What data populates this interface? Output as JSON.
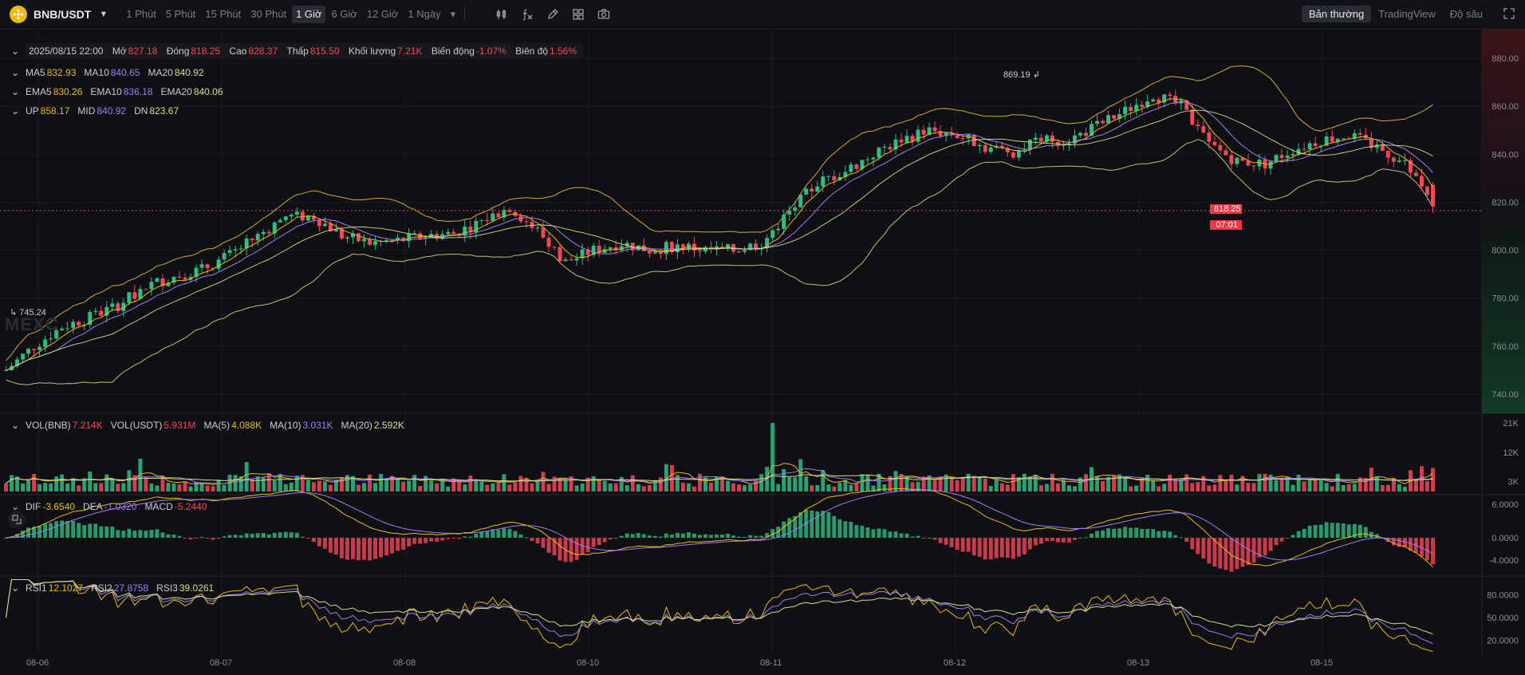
{
  "header": {
    "pair": "BNB/USDT",
    "intervals": [
      "1 Phút",
      "5 Phút",
      "15 Phút",
      "30 Phút",
      "1 Giờ",
      "6 Giờ",
      "12 Giờ",
      "1 Ngày"
    ],
    "active_interval": "1 Giờ",
    "views": [
      "Bản thường",
      "TradingView",
      "Độ sâu"
    ],
    "active_view": "Bản thường",
    "tool_icons": [
      "indicators-icon",
      "fx-icon",
      "draw-pencil-icon",
      "layout-grid-icon",
      "camera-icon"
    ]
  },
  "ohlc": {
    "datetime": "2025/08/15 22:00",
    "open_label": "Mở",
    "open": "827.18",
    "close_label": "Đóng",
    "close": "818.25",
    "high_label": "Cao",
    "high": "828.37",
    "low_label": "Thấp",
    "low": "815.50",
    "vol_label": "Khối lượng",
    "vol": "7.21K",
    "chg_label": "Biến động",
    "chg": "-1.07%",
    "amp_label": "Biên độ",
    "amp": "1.56%"
  },
  "ma": {
    "ma5_label": "MA5",
    "ma5": "832.93",
    "ma10_label": "MA10",
    "ma10": "840.65",
    "ma20_label": "MA20",
    "ma20": "840.92"
  },
  "ema": {
    "ema5_label": "EMA5",
    "ema5": "830.26",
    "ema10_label": "EMA10",
    "ema10": "836.18",
    "ema20_label": "EMA20",
    "ema20": "840.06"
  },
  "boll": {
    "up_label": "UP",
    "up": "858.17",
    "mid_label": "MID",
    "mid": "840.92",
    "dn_label": "DN",
    "dn": "823.67"
  },
  "volume": {
    "bnb_label": "VOL(BNB)",
    "bnb": "7.214K",
    "usdt_label": "VOL(USDT)",
    "usdt": "5.931M",
    "ma5_label": "MA(5)",
    "ma5": "4.088K",
    "ma10_label": "MA(10)",
    "ma10": "3.031K",
    "ma20_label": "MA(20)",
    "ma20": "2.592K"
  },
  "macd": {
    "dif_label": "DIF",
    "dif": "-3.6540",
    "dea_label": "DEA",
    "dea": "-1.0320",
    "macd_label": "MACD",
    "macd": "-5.2440"
  },
  "rsi": {
    "rsi1_label": "RSI1",
    "rsi1": "12.1027",
    "rsi2_label": "RSI2",
    "rsi2": "27.8758",
    "rsi3_label": "RSI3",
    "rsi3": "39.0261"
  },
  "watermark": "MEXC",
  "current_price": "818.25",
  "countdown": "07:01",
  "high_mark": "869.19",
  "low_mark": "745.24",
  "price_axis": [
    "880.00",
    "860.00",
    "840.00",
    "820.00",
    "800.00",
    "780.00",
    "760.00",
    "740.00"
  ],
  "vol_axis": [
    "21K",
    "12K",
    "3K"
  ],
  "macd_axis": [
    "6.0000",
    "0.0000",
    "-4.0000"
  ],
  "rsi_axis": [
    "80.0000",
    "50.0000",
    "20.0000"
  ],
  "x_labels": [
    "08-06",
    "08-07",
    "08-08",
    "08-10",
    "08-11",
    "08-12",
    "08-13",
    "08-15"
  ],
  "chart_data": {
    "type": "candlestick",
    "up_color": "#2ebd85",
    "down_color": "#f6465d",
    "price_range": [
      732,
      892
    ],
    "approx_close_path": [
      [
        0,
        750
      ],
      [
        5,
        760
      ],
      [
        10,
        768
      ],
      [
        15,
        772
      ],
      [
        20,
        777
      ],
      [
        25,
        785
      ],
      [
        30,
        789
      ],
      [
        35,
        792
      ],
      [
        40,
        798
      ],
      [
        45,
        806
      ],
      [
        50,
        814
      ],
      [
        55,
        814
      ],
      [
        60,
        806
      ],
      [
        65,
        803
      ],
      [
        70,
        804
      ],
      [
        75,
        806
      ],
      [
        80,
        807
      ],
      [
        85,
        812
      ],
      [
        90,
        818
      ],
      [
        95,
        808
      ],
      [
        100,
        795
      ],
      [
        105,
        800
      ],
      [
        110,
        803
      ],
      [
        115,
        800
      ],
      [
        120,
        802
      ],
      [
        125,
        800
      ],
      [
        130,
        800
      ],
      [
        135,
        803
      ],
      [
        140,
        816
      ],
      [
        145,
        828
      ],
      [
        150,
        833
      ],
      [
        155,
        840
      ],
      [
        160,
        846
      ],
      [
        165,
        850
      ],
      [
        170,
        848
      ],
      [
        175,
        843
      ],
      [
        180,
        841
      ],
      [
        185,
        846
      ],
      [
        190,
        846
      ],
      [
        195,
        852
      ],
      [
        200,
        858
      ],
      [
        205,
        865
      ],
      [
        210,
        860
      ],
      [
        215,
        844
      ],
      [
        220,
        837
      ],
      [
        225,
        836
      ],
      [
        230,
        842
      ],
      [
        235,
        846
      ],
      [
        240,
        848
      ],
      [
        245,
        843
      ],
      [
        250,
        836
      ],
      [
        255,
        818
      ]
    ]
  }
}
